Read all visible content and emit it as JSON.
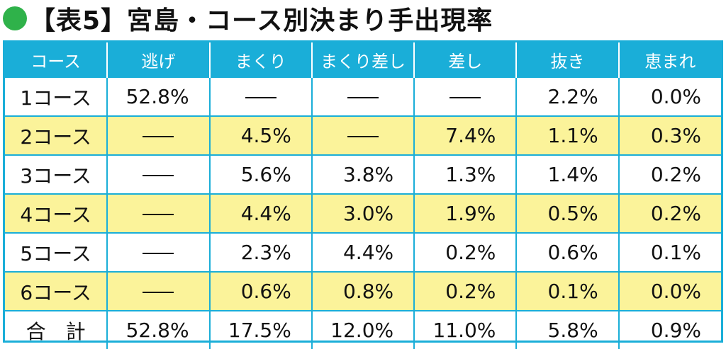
{
  "title": "【表5】宮島・コース別決まり手出現率",
  "colors": {
    "accent": "#1aaed8",
    "highlight": "#fbf39a",
    "dot": "#2fb24a"
  },
  "headers": [
    "コース",
    "逃げ",
    "まくり",
    "まくり差し",
    "差し",
    "抜き",
    "恵まれ"
  ],
  "rows": [
    {
      "course": "1コース",
      "nige": "52.8%",
      "makuri": "—",
      "makurizashi": "—",
      "sashi": "—",
      "nuki": "2.2%",
      "megumare": "0.0%"
    },
    {
      "course": "2コース",
      "nige": "—",
      "makuri": "4.5%",
      "makurizashi": "—",
      "sashi": "7.4%",
      "nuki": "1.1%",
      "megumare": "0.3%"
    },
    {
      "course": "3コース",
      "nige": "—",
      "makuri": "5.6%",
      "makurizashi": "3.8%",
      "sashi": "1.3%",
      "nuki": "1.4%",
      "megumare": "0.2%"
    },
    {
      "course": "4コース",
      "nige": "—",
      "makuri": "4.4%",
      "makurizashi": "3.0%",
      "sashi": "1.9%",
      "nuki": "0.5%",
      "megumare": "0.2%"
    },
    {
      "course": "5コース",
      "nige": "—",
      "makuri": "2.3%",
      "makurizashi": "4.4%",
      "sashi": "0.2%",
      "nuki": "0.6%",
      "megumare": "0.1%"
    },
    {
      "course": "6コース",
      "nige": "—",
      "makuri": "0.6%",
      "makurizashi": "0.8%",
      "sashi": "0.2%",
      "nuki": "0.1%",
      "megumare": "0.0%"
    }
  ],
  "total": {
    "label": "合　計",
    "nige": "52.8%",
    "makuri": "17.5%",
    "makurizashi": "12.0%",
    "sashi": "11.0%",
    "nuki": "5.8%",
    "megumare": "0.9%"
  }
}
